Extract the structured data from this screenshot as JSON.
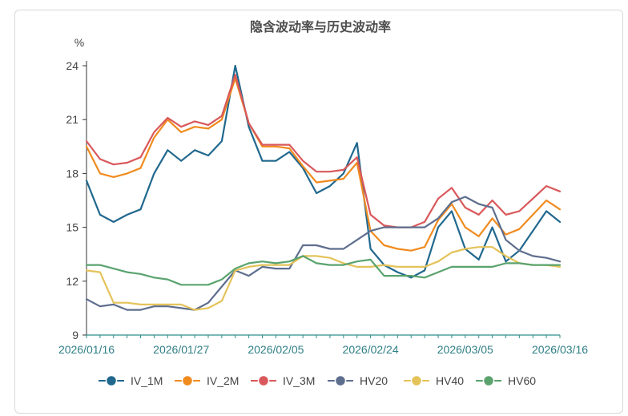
{
  "chart_data": {
    "type": "line",
    "title": "隐含波动率与历史波动率",
    "ylabel": "%",
    "xlabel": "",
    "ylim": [
      9,
      24
    ],
    "yticks": [
      9,
      12,
      15,
      18,
      21,
      24
    ],
    "x": [
      "2026/01/16",
      "2026/01/19",
      "2026/01/20",
      "2026/01/21",
      "2026/01/22",
      "2026/01/23",
      "2026/01/26",
      "2026/01/27",
      "2026/01/28",
      "2026/01/29",
      "2026/01/30",
      "2026/02/02",
      "2026/02/03",
      "2026/02/04",
      "2026/02/05",
      "2026/02/06",
      "2026/02/09",
      "2026/02/10",
      "2026/02/11",
      "2026/02/12",
      "2026/02/13",
      "2026/02/24",
      "2026/02/25",
      "2026/02/26",
      "2026/02/27",
      "2026/03/02",
      "2026/03/03",
      "2026/03/04",
      "2026/03/05",
      "2026/03/06",
      "2026/03/09",
      "2026/03/10",
      "2026/03/11",
      "2026/03/12",
      "2026/03/13",
      "2026/03/16"
    ],
    "xtick_labels": [
      "2026/01/16",
      "2026/01/27",
      "2026/02/05",
      "2026/02/24",
      "2026/03/05",
      "2026/03/16"
    ],
    "legend_position": "bottom",
    "grid": false,
    "series": [
      {
        "name": "IV_1M",
        "color": "#21688e",
        "values": [
          17.6,
          15.7,
          15.3,
          15.7,
          16.0,
          18.0,
          19.3,
          18.7,
          19.3,
          19.0,
          19.8,
          24.0,
          20.6,
          18.7,
          18.7,
          19.2,
          18.3,
          16.9,
          17.3,
          18.0,
          19.7,
          13.8,
          12.9,
          12.5,
          12.2,
          12.6,
          15.0,
          15.9,
          13.8,
          13.2,
          15.0,
          13.1,
          13.7,
          14.8,
          15.9,
          15.3
        ]
      },
      {
        "name": "IV_2M",
        "color": "#f08b1f",
        "values": [
          19.5,
          18.0,
          17.8,
          18.0,
          18.3,
          20.0,
          21.0,
          20.3,
          20.6,
          20.5,
          21.0,
          23.3,
          20.8,
          19.5,
          19.5,
          19.4,
          18.4,
          17.5,
          17.6,
          17.7,
          18.6,
          14.8,
          14.0,
          13.8,
          13.7,
          13.9,
          15.4,
          16.3,
          15.0,
          14.5,
          15.5,
          14.6,
          14.9,
          15.7,
          16.5,
          16.0
        ]
      },
      {
        "name": "IV_3M",
        "color": "#d9585b",
        "values": [
          19.8,
          18.8,
          18.5,
          18.6,
          18.9,
          20.3,
          21.1,
          20.6,
          20.9,
          20.7,
          21.2,
          23.5,
          20.8,
          19.6,
          19.6,
          19.6,
          18.7,
          18.1,
          18.1,
          18.2,
          18.9,
          15.7,
          15.1,
          15.0,
          15.0,
          15.3,
          16.6,
          17.2,
          16.1,
          15.7,
          16.5,
          15.7,
          15.9,
          16.6,
          17.3,
          17.0
        ]
      },
      {
        "name": "HV20",
        "color": "#5e6e8e",
        "values": [
          11.0,
          10.6,
          10.7,
          10.4,
          10.4,
          10.6,
          10.6,
          10.5,
          10.4,
          10.8,
          11.7,
          12.6,
          12.3,
          12.8,
          12.7,
          12.7,
          14.0,
          14.0,
          13.8,
          13.8,
          14.3,
          14.8,
          15.0,
          15.0,
          15.0,
          15.0,
          15.5,
          16.4,
          16.7,
          16.3,
          16.1,
          14.3,
          13.7,
          13.4,
          13.3,
          13.1
        ]
      },
      {
        "name": "HV40",
        "color": "#e4c35a",
        "values": [
          12.6,
          12.5,
          10.8,
          10.8,
          10.7,
          10.7,
          10.7,
          10.7,
          10.4,
          10.5,
          10.9,
          12.6,
          12.8,
          12.9,
          12.9,
          12.9,
          13.4,
          13.4,
          13.3,
          13.0,
          12.8,
          12.8,
          12.9,
          12.8,
          12.8,
          12.8,
          13.1,
          13.6,
          13.8,
          13.9,
          13.9,
          13.4,
          13.0,
          12.9,
          12.9,
          12.8
        ]
      },
      {
        "name": "HV60",
        "color": "#5aa36e",
        "values": [
          12.9,
          12.9,
          12.7,
          12.5,
          12.4,
          12.2,
          12.1,
          11.8,
          11.8,
          11.8,
          12.1,
          12.7,
          13.0,
          13.1,
          13.0,
          13.1,
          13.4,
          13.0,
          12.9,
          12.9,
          13.1,
          13.2,
          12.3,
          12.3,
          12.3,
          12.2,
          12.5,
          12.8,
          12.8,
          12.8,
          12.8,
          13.0,
          13.0,
          12.9,
          12.9,
          12.9
        ]
      }
    ]
  }
}
